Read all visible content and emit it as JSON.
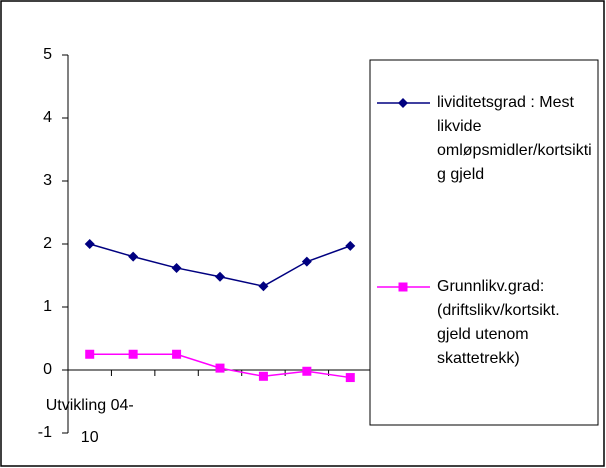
{
  "chart_data": {
    "type": "line",
    "categories": [
      "Utvikling 04-10",
      null,
      null,
      null,
      null,
      null,
      null
    ],
    "series": [
      {
        "name": "lividitetsgrad : Mest likvide omløpsmidler/kortsiktig gjeld",
        "color": "#000080",
        "marker": "diamond",
        "values": [
          2.0,
          1.8,
          1.62,
          1.48,
          1.33,
          1.72,
          1.97
        ]
      },
      {
        "name": "Grunnlikv.grad: (driftslikv/kortsikt. gjeld utenom skattetrekk)",
        "color": "#ff00ff",
        "marker": "square",
        "values": [
          0.25,
          0.25,
          0.25,
          0.03,
          -0.1,
          -0.02,
          -0.12
        ]
      }
    ],
    "ylim": [
      -1,
      5
    ],
    "yticks": [
      -1,
      0,
      1,
      2,
      3,
      4,
      5
    ],
    "grid": false,
    "legend": "right"
  }
}
